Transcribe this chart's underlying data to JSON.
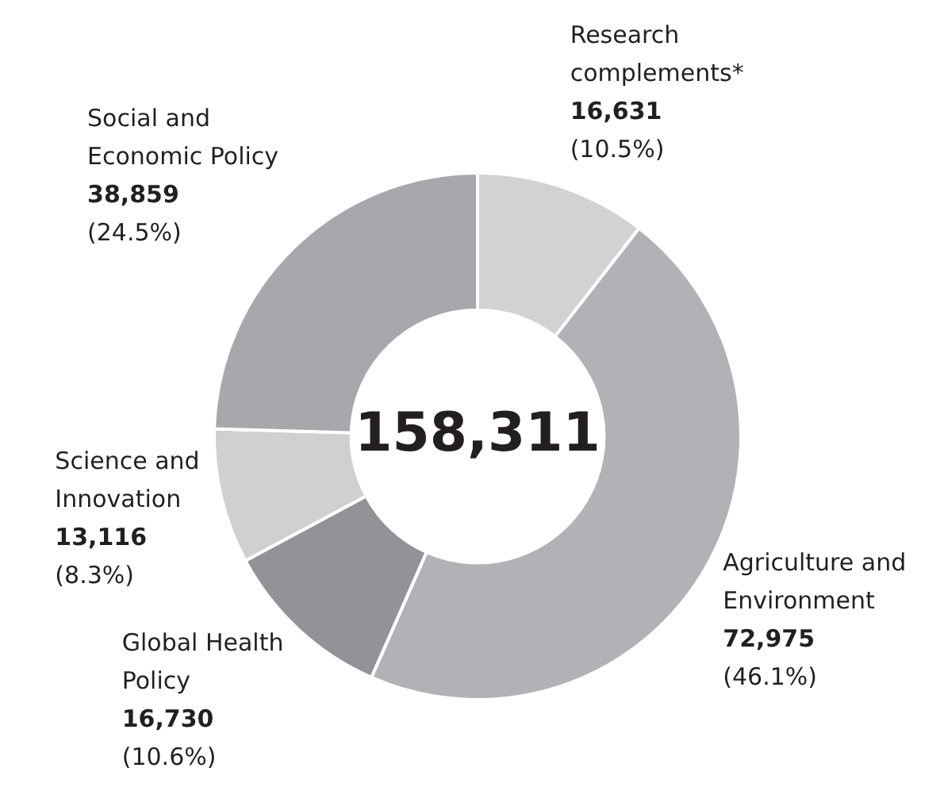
{
  "chart_data": {
    "type": "donut",
    "categories": [
      "Research complements*",
      "Agriculture and Environment",
      "Global Health Policy",
      "Science and Innovation",
      "Social and Economic Policy"
    ],
    "values": [
      16631,
      72975,
      16730,
      13116,
      38859
    ],
    "colors": [
      "#d1d2d4",
      "#b1b2b5",
      "#929396",
      "#cfd0d2",
      "#a7a8ab"
    ],
    "value_labels": [
      "16,631 (10.5%)",
      "72,975 (46.1%)",
      "16,730 (10.6%)",
      "13,116 (8.3%)",
      "38,859 (24.5%)"
    ],
    "annotations": [
      "158,311"
    ],
    "legend": false
  }
}
